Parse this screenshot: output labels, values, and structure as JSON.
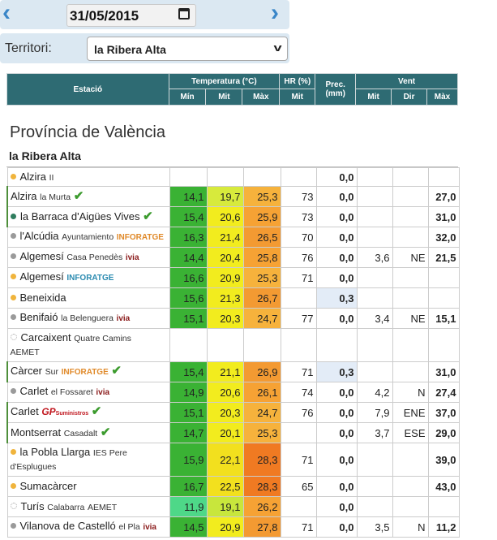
{
  "date_bar": {
    "date": "31/05/2015"
  },
  "territory": {
    "label": "Territori:",
    "selected": "la Ribera Alta"
  },
  "header": {
    "station": "Estació",
    "temperature": "Temperatura (°C)",
    "hr": "HR (%)",
    "prec": "Prec.",
    "prec_unit": "(mm)",
    "wind": "Vent",
    "sub": {
      "min": "Mín",
      "mit": "Mit",
      "max": "Màx",
      "hr_mit": "Mit",
      "wind_mit": "Mit",
      "wind_dir": "Dir",
      "wind_max": "Màx"
    }
  },
  "province": "Província de València",
  "region": "la Ribera Alta",
  "colors": {
    "dot_orange": "#f0b43c",
    "dot_green": "#2f7d5e",
    "dot_grey": "#9a9a9a",
    "check": "#3c9b2e",
    "header_bg": "#2e6b73",
    "prec_highlight": "#e3ecf7"
  },
  "stations": [
    {
      "name": "Alzira",
      "sub": "II",
      "brand": "",
      "brand_color": "",
      "dot": "orange",
      "check": false,
      "bar": false,
      "t_min": "",
      "t_mit": "",
      "t_max": "",
      "c_min": "",
      "c_mit": "",
      "c_max": "",
      "hr": "",
      "prec": "0,0",
      "prec_hl": false,
      "w_mit": "",
      "w_dir": "",
      "w_max": ""
    },
    {
      "name": "Alzira",
      "sub": "la Murta",
      "brand": "",
      "brand_color": "",
      "dot": "none",
      "check": true,
      "bar": true,
      "t_min": "14,1",
      "t_mit": "19,7",
      "t_max": "25,3",
      "c_min": "#3ab234",
      "c_mit": "#d7ea3c",
      "c_max": "#f6b23c",
      "hr": "73",
      "prec": "0,0",
      "prec_hl": false,
      "w_mit": "",
      "w_dir": "",
      "w_max": "27,0"
    },
    {
      "name": "la Barraca d'Aigües Vives",
      "sub": "",
      "brand": "",
      "brand_color": "",
      "dot": "green",
      "check": true,
      "bar": true,
      "t_min": "15,4",
      "t_mit": "20,6",
      "t_max": "25,9",
      "c_min": "#3ab234",
      "c_mit": "#f2ec1e",
      "c_max": "#f6a234",
      "hr": "73",
      "prec": "0,0",
      "prec_hl": false,
      "w_mit": "",
      "w_dir": "",
      "w_max": "31,0"
    },
    {
      "name": "l'Alcúdia",
      "sub": "Ayuntamiento",
      "brand": "INFORATGE",
      "brand_color": "#e08a2a",
      "dot": "grey",
      "check": false,
      "bar": false,
      "t_min": "16,3",
      "t_mit": "21,4",
      "t_max": "26,5",
      "c_min": "#3ab234",
      "c_mit": "#f2ec1e",
      "c_max": "#f39a32",
      "hr": "70",
      "prec": "0,0",
      "prec_hl": false,
      "w_mit": "",
      "w_dir": "",
      "w_max": "32,0"
    },
    {
      "name": "Algemesí",
      "sub": "Casa Penedès",
      "brand": "ivia",
      "brand_color": "#8a1a1a",
      "dot": "grey",
      "check": false,
      "bar": false,
      "t_min": "14,4",
      "t_mit": "20,4",
      "t_max": "25,8",
      "c_min": "#3ab234",
      "c_mit": "#f2ec1e",
      "c_max": "#f6a234",
      "hr": "76",
      "prec": "0,0",
      "prec_hl": false,
      "w_mit": "3,6",
      "w_dir": "NE",
      "w_max": "21,5"
    },
    {
      "name": "Algemesí",
      "sub": "",
      "brand": "INFORATGE",
      "brand_color": "#2a8ab0",
      "dot": "orange",
      "check": false,
      "bar": false,
      "t_min": "16,6",
      "t_mit": "20,9",
      "t_max": "25,3",
      "c_min": "#3ab234",
      "c_mit": "#f2ec1e",
      "c_max": "#f6b23c",
      "hr": "71",
      "prec": "0,0",
      "prec_hl": false,
      "w_mit": "",
      "w_dir": "",
      "w_max": ""
    },
    {
      "name": "Beneixida",
      "sub": "",
      "brand": "",
      "brand_color": "",
      "dot": "orange",
      "check": false,
      "bar": false,
      "t_min": "15,6",
      "t_mit": "21,3",
      "t_max": "26,7",
      "c_min": "#3ab234",
      "c_mit": "#f2ec1e",
      "c_max": "#f39a32",
      "hr": "",
      "prec": "0,3",
      "prec_hl": true,
      "w_mit": "",
      "w_dir": "",
      "w_max": ""
    },
    {
      "name": "Benifaió",
      "sub": "la Belenguera",
      "brand": "ivia",
      "brand_color": "#8a1a1a",
      "dot": "grey",
      "check": false,
      "bar": false,
      "t_min": "15,1",
      "t_mit": "20,3",
      "t_max": "24,7",
      "c_min": "#3ab234",
      "c_mit": "#f2ec1e",
      "c_max": "#f6b23c",
      "hr": "77",
      "prec": "0,0",
      "prec_hl": false,
      "w_mit": "3,4",
      "w_dir": "NE",
      "w_max": "15,1"
    },
    {
      "name": "Carcaixent",
      "sub": "Quatre Camins",
      "brand": "AEMET",
      "brand_color": "#333",
      "dot": "white",
      "check": false,
      "bar": false,
      "wrap": true,
      "t_min": "",
      "t_mit": "",
      "t_max": "",
      "c_min": "",
      "c_mit": "",
      "c_max": "",
      "hr": "",
      "prec": "",
      "prec_hl": false,
      "w_mit": "",
      "w_dir": "",
      "w_max": ""
    },
    {
      "name": "Càrcer",
      "sub": "Sur",
      "brand": "INFORATGE",
      "brand_color": "#e08a2a",
      "dot": "none",
      "check": true,
      "bar": true,
      "t_min": "15,4",
      "t_mit": "21,1",
      "t_max": "26,9",
      "c_min": "#3ab234",
      "c_mit": "#f2ec1e",
      "c_max": "#f39a32",
      "hr": "71",
      "prec": "0,3",
      "prec_hl": true,
      "w_mit": "",
      "w_dir": "",
      "w_max": "31,0"
    },
    {
      "name": "Carlet",
      "sub": "el Fossaret",
      "brand": "ivia",
      "brand_color": "#8a1a1a",
      "dot": "grey",
      "check": false,
      "bar": false,
      "t_min": "14,9",
      "t_mit": "20,6",
      "t_max": "26,1",
      "c_min": "#3ab234",
      "c_mit": "#f2ec1e",
      "c_max": "#f6a234",
      "hr": "74",
      "prec": "0,0",
      "prec_hl": false,
      "w_mit": "4,2",
      "w_dir": "N",
      "w_max": "27,4"
    },
    {
      "name": "Carlet",
      "sub": "",
      "brand": "GP",
      "brand_small": "Suministros",
      "brand_color": "#c0161e",
      "dot": "none",
      "check": true,
      "bar": true,
      "t_min": "15,1",
      "t_mit": "20,3",
      "t_max": "24,7",
      "c_min": "#3ab234",
      "c_mit": "#f2ec1e",
      "c_max": "#f6b23c",
      "hr": "76",
      "prec": "0,0",
      "prec_hl": false,
      "w_mit": "7,9",
      "w_dir": "ENE",
      "w_max": "37,0"
    },
    {
      "name": "Montserrat",
      "sub": "Casadalt",
      "brand": "",
      "brand_color": "",
      "dot": "none",
      "check": true,
      "bar": true,
      "t_min": "14,7",
      "t_mit": "20,1",
      "t_max": "25,3",
      "c_min": "#3ab234",
      "c_mit": "#f2ec1e",
      "c_max": "#f6b23c",
      "hr": "",
      "prec": "0,0",
      "prec_hl": false,
      "w_mit": "3,7",
      "w_dir": "ESE",
      "w_max": "29,0"
    },
    {
      "name": "la Pobla Llarga",
      "sub": "IES Pere",
      "sub2": "d'Esplugues",
      "brand": "",
      "brand_color": "",
      "dot": "orange",
      "check": false,
      "bar": false,
      "wrap": true,
      "t_min": "15,9",
      "t_mit": "22,1",
      "t_max": "28,3",
      "c_min": "#3ab234",
      "c_mit": "#f2e01e",
      "c_max": "#f07a22",
      "hr": "71",
      "prec": "0,0",
      "prec_hl": false,
      "w_mit": "",
      "w_dir": "",
      "w_max": "39,0"
    },
    {
      "name": "Sumacàrcer",
      "sub": "",
      "brand": "",
      "brand_color": "",
      "dot": "orange",
      "check": false,
      "bar": false,
      "t_min": "16,7",
      "t_mit": "22,5",
      "t_max": "28,3",
      "c_min": "#3ab234",
      "c_mit": "#f2e01e",
      "c_max": "#f07a22",
      "hr": "65",
      "prec": "0,0",
      "prec_hl": false,
      "w_mit": "",
      "w_dir": "",
      "w_max": "43,0"
    },
    {
      "name": "Turís",
      "sub": "Calabarra",
      "brand": "AEMET",
      "brand_color": "#333",
      "dot": "white",
      "check": false,
      "bar": false,
      "t_min": "11,9",
      "t_mit": "19,1",
      "t_max": "26,2",
      "c_min": "#4ed888",
      "c_mit": "#c8e63c",
      "c_max": "#f6a234",
      "hr": "",
      "prec": "0,0",
      "prec_hl": false,
      "w_mit": "",
      "w_dir": "",
      "w_max": ""
    },
    {
      "name": "Vilanova de Castelló",
      "sub": "el Pla",
      "brand": "ivia",
      "brand_color": "#8a1a1a",
      "dot": "grey",
      "check": false,
      "bar": false,
      "t_min": "14,5",
      "t_mit": "20,9",
      "t_max": "27,8",
      "c_min": "#3ab234",
      "c_mit": "#f2ec1e",
      "c_max": "#f39a32",
      "hr": "71",
      "prec": "0,0",
      "prec_hl": false,
      "w_mit": "3,5",
      "w_dir": "N",
      "w_max": "11,2"
    }
  ]
}
